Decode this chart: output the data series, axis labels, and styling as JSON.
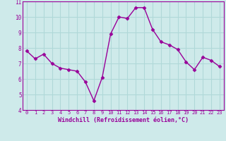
{
  "x": [
    0,
    1,
    2,
    3,
    4,
    5,
    6,
    7,
    8,
    9,
    10,
    11,
    12,
    13,
    14,
    15,
    16,
    17,
    18,
    19,
    20,
    21,
    22,
    23
  ],
  "y": [
    7.8,
    7.3,
    7.6,
    7.0,
    6.7,
    6.6,
    6.5,
    5.8,
    4.6,
    6.1,
    8.9,
    10.0,
    9.9,
    10.6,
    10.6,
    9.2,
    8.4,
    8.2,
    7.9,
    7.1,
    6.6,
    7.4,
    7.2,
    6.8
  ],
  "line_color": "#990099",
  "marker": "D",
  "marker_size": 2.5,
  "bg_color": "#ceeaea",
  "grid_color": "#b0d8d8",
  "xlabel": "Windchill (Refroidissement éolien,°C)",
  "xlabel_color": "#990099",
  "tick_color": "#990099",
  "spine_color": "#990099",
  "ylim": [
    4,
    11
  ],
  "xlim": [
    -0.5,
    23.5
  ],
  "yticks": [
    4,
    5,
    6,
    7,
    8,
    9,
    10,
    11
  ],
  "xticks": [
    0,
    1,
    2,
    3,
    4,
    5,
    6,
    7,
    8,
    9,
    10,
    11,
    12,
    13,
    14,
    15,
    16,
    17,
    18,
    19,
    20,
    21,
    22,
    23
  ],
  "linewidth": 1.0
}
